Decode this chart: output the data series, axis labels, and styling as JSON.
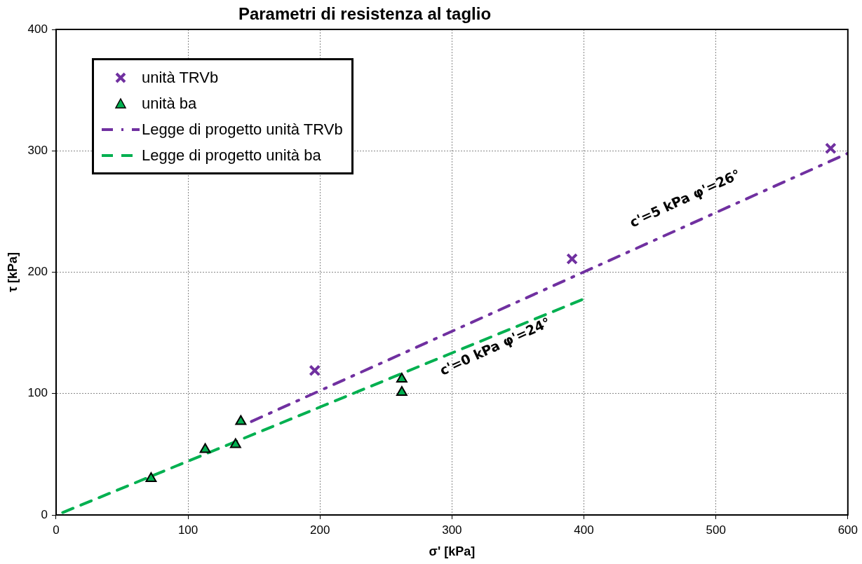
{
  "chart_data": {
    "type": "scatter",
    "title": "Parametri di resistenza al taglio",
    "xlabel": "σ' [kPa]",
    "ylabel": "τ [kPa]",
    "xlim": [
      0,
      600
    ],
    "xticks": [
      0,
      100,
      200,
      300,
      400,
      500,
      600
    ],
    "ylim": [
      0,
      400
    ],
    "yticks": [
      0,
      100,
      200,
      300,
      400
    ],
    "grid": true,
    "legend": "top left",
    "series": [
      {
        "name": "unità TRVb",
        "color": "#7030a0",
        "marker": "cross",
        "x": [
          196,
          391,
          587
        ],
        "values": [
          119,
          211,
          302
        ]
      },
      {
        "name": "unità ba",
        "color": "#00b050",
        "marker": "triangle",
        "x": [
          72,
          113,
          136,
          140,
          262,
          262
        ],
        "values": [
          30,
          54,
          58,
          77,
          112,
          101
        ]
      },
      {
        "name": "Legge di progetto unità TRVb",
        "type": "line",
        "color": "#7030a0",
        "line_style": "dashdot",
        "marker": "none",
        "x": [
          148,
          600
        ],
        "values": [
          77,
          298
        ]
      },
      {
        "name": "Legge di progetto unità ba",
        "type": "line",
        "color": "#00b050",
        "line_style": "dashed",
        "marker": "none",
        "x": [
          5,
          400
        ],
        "values": [
          2,
          178
        ]
      }
    ],
    "annotations": [
      "c'=5 kPa φ'=26°",
      "c'=0 kPa φ'=24°"
    ]
  }
}
